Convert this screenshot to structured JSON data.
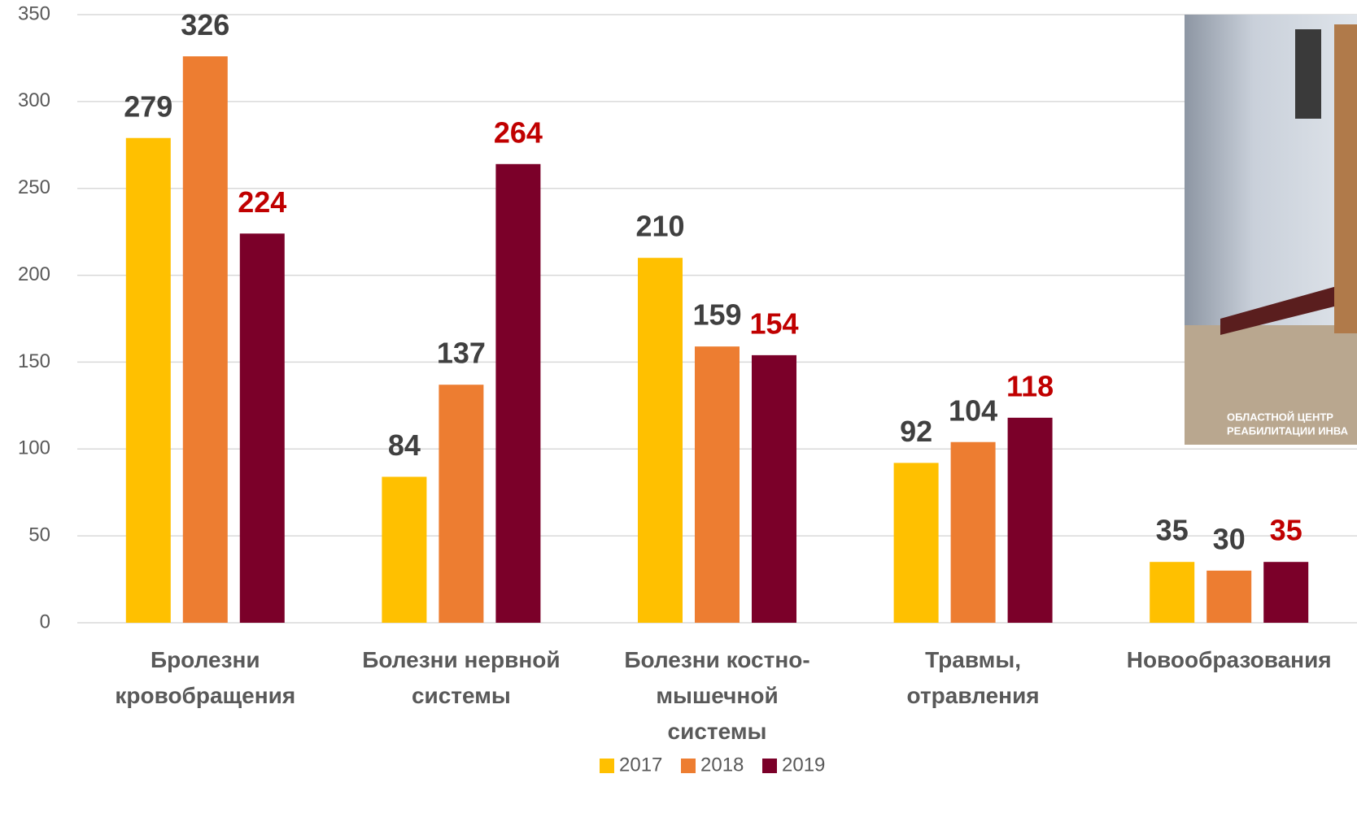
{
  "chart_data": {
    "type": "bar",
    "categories": [
      "Бролезни кровобращения",
      "Болезни нервной системы",
      "Болезни костно-мышечной системы",
      "Травмы, отравления",
      "Новообразования"
    ],
    "series": [
      {
        "name": "2017",
        "color": "#ffc000",
        "label_color": "#404040",
        "values": [
          279,
          84,
          210,
          92,
          35
        ]
      },
      {
        "name": "2018",
        "color": "#ed7d31",
        "label_color": "#404040",
        "values": [
          326,
          137,
          159,
          104,
          30
        ]
      },
      {
        "name": "2019",
        "color": "#7b0029",
        "label_color": "#c00000",
        "values": [
          224,
          264,
          154,
          118,
          35
        ]
      }
    ],
    "ylim": [
      0,
      350
    ],
    "yticks": [
      0,
      50,
      100,
      150,
      200,
      250,
      300,
      350
    ],
    "grid": true,
    "legend": "bottom"
  },
  "photo": {
    "caption": [
      "ОБЛАСТНОЙ ЦЕНТР",
      "РЕАБИЛИТАЦИИ ИНВА"
    ]
  }
}
